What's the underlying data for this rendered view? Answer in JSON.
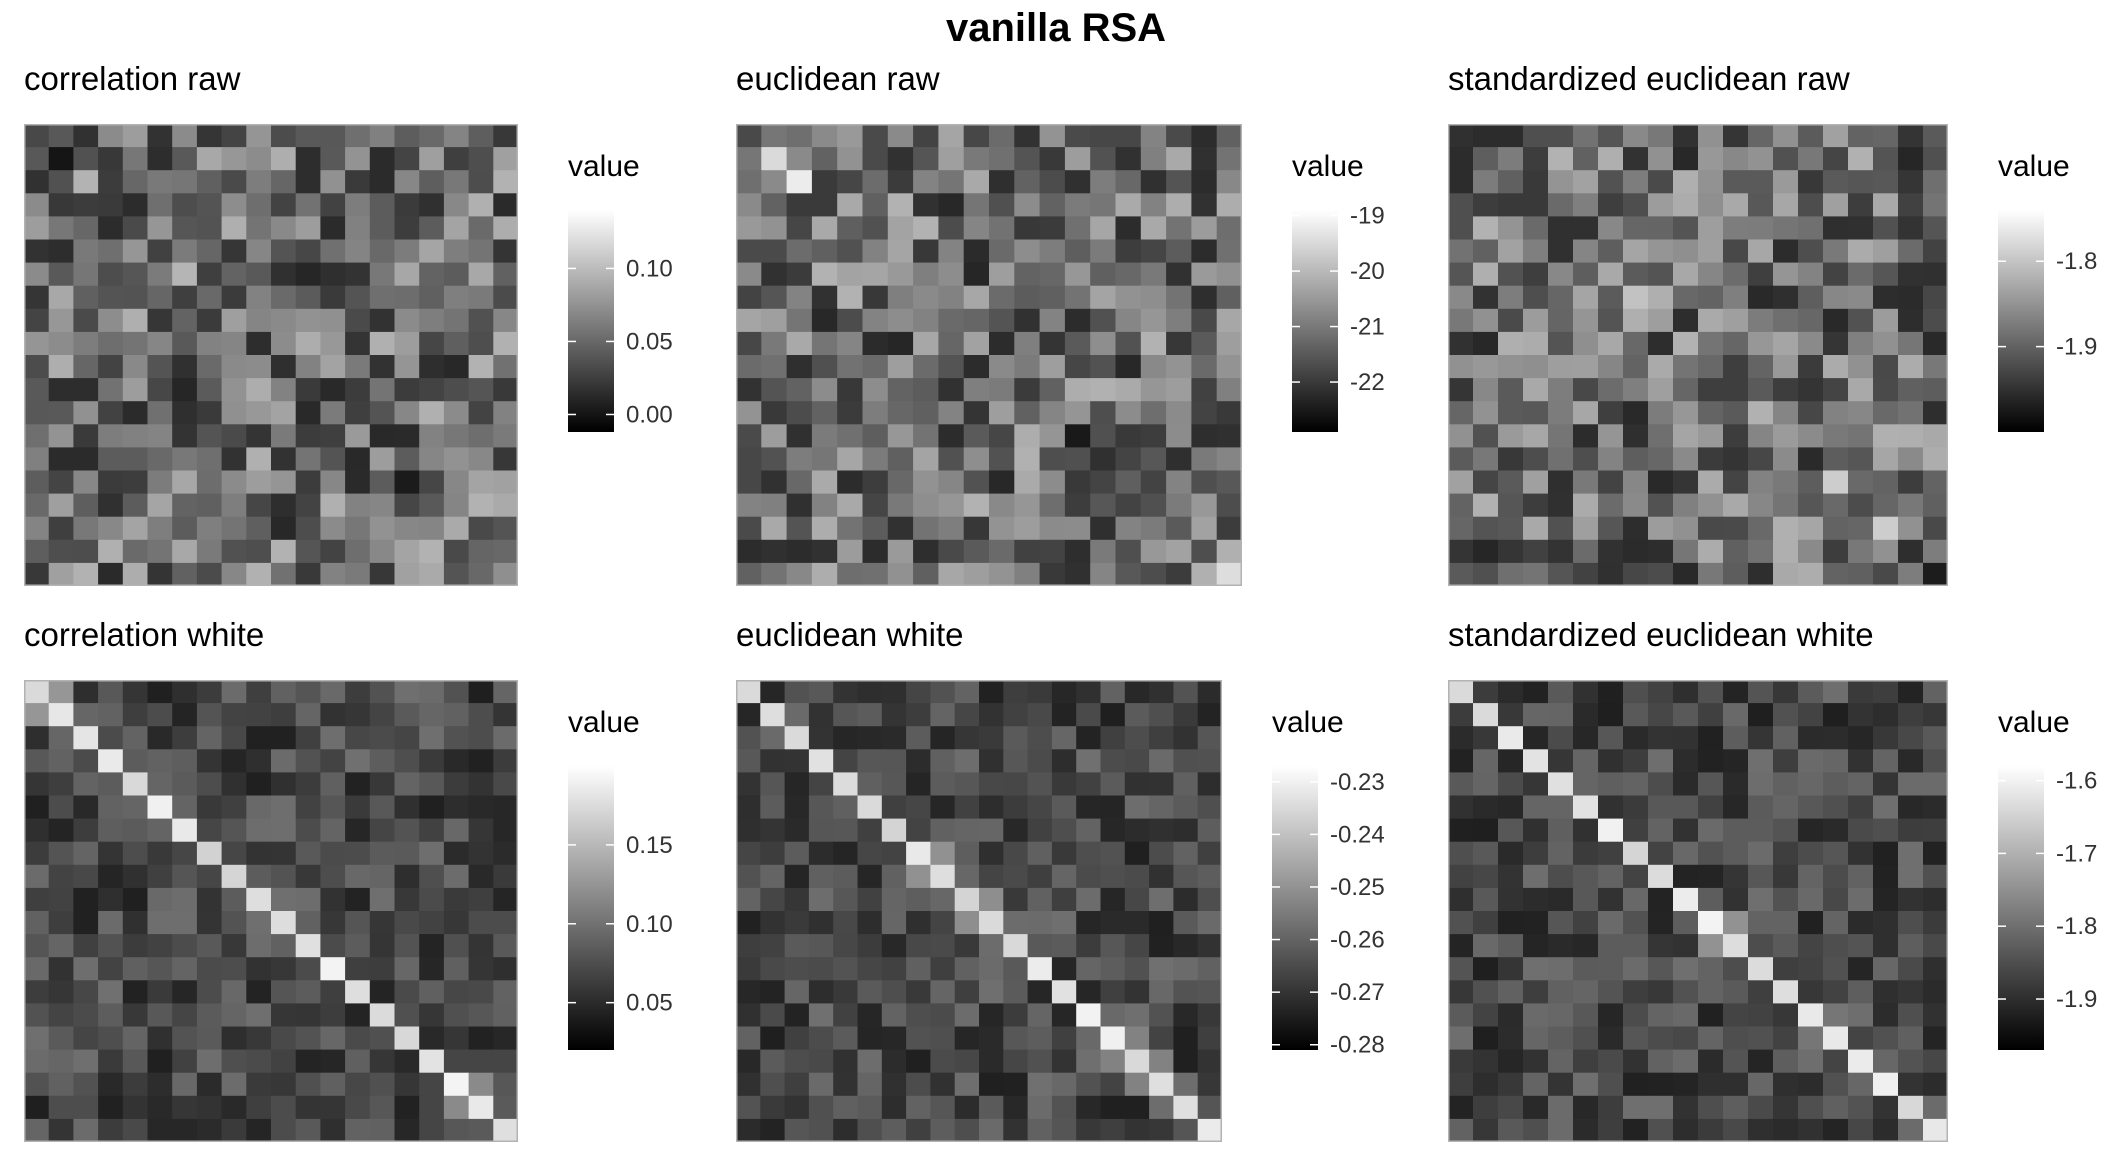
{
  "title": "vanilla RSA",
  "chart_data": [
    {
      "type": "heatmap",
      "title": "correlation raw",
      "matrix": "raw",
      "n": 20,
      "colorscale": [
        "#000000",
        "#ffffff"
      ],
      "value_range": [
        -0.012,
        0.14
      ],
      "legend": {
        "title": "value",
        "ticks": [
          0.1,
          0.05,
          0.0
        ],
        "tick_labels": [
          "0.10",
          "0.05",
          "0.00"
        ]
      },
      "seed": 11
    },
    {
      "type": "heatmap",
      "title": "euclidean raw",
      "matrix": "raw",
      "n": 20,
      "colorscale": [
        "#000000",
        "#ffffff"
      ],
      "value_range": [
        -22.9,
        -18.9
      ],
      "legend": {
        "title": "value",
        "ticks": [
          -19,
          -20,
          -21,
          -22
        ],
        "tick_labels": [
          "-19",
          "-20",
          "-21",
          "-22"
        ]
      },
      "seed": 23
    },
    {
      "type": "heatmap",
      "title": "standardized euclidean raw",
      "matrix": "raw",
      "n": 20,
      "colorscale": [
        "#000000",
        "#ffffff"
      ],
      "value_range": [
        -2.0,
        -1.74
      ],
      "legend": {
        "title": "value",
        "ticks": [
          -1.8,
          -1.9
        ],
        "tick_labels": [
          "-1.8",
          "-1.9"
        ]
      },
      "seed": 37
    },
    {
      "type": "heatmap",
      "title": "correlation white",
      "matrix": "white",
      "n": 20,
      "colorscale": [
        "#000000",
        "#ffffff"
      ],
      "value_range": [
        0.02,
        0.2
      ],
      "legend": {
        "title": "value",
        "ticks": [
          0.15,
          0.1,
          0.05
        ],
        "tick_labels": [
          "0.15",
          "0.10",
          "0.05"
        ]
      },
      "seed": 41
    },
    {
      "type": "heatmap",
      "title": "euclidean white",
      "matrix": "white",
      "n": 20,
      "colorscale": [
        "#000000",
        "#ffffff"
      ],
      "value_range": [
        -0.281,
        -0.227
      ],
      "legend": {
        "title": "value",
        "ticks": [
          -0.23,
          -0.24,
          -0.25,
          -0.26,
          -0.27,
          -0.28
        ],
        "tick_labels": [
          "-0.23",
          "-0.24",
          "-0.25",
          "-0.26",
          "-0.27",
          "-0.28"
        ]
      },
      "seed": 53
    },
    {
      "type": "heatmap",
      "title": "standardized euclidean white",
      "matrix": "white",
      "n": 20,
      "colorscale": [
        "#000000",
        "#ffffff"
      ],
      "value_range": [
        -1.97,
        -1.58
      ],
      "legend": {
        "title": "value",
        "ticks": [
          -1.6,
          -1.7,
          -1.8,
          -1.9
        ],
        "tick_labels": [
          "-1.6",
          "-1.7",
          "-1.8",
          "-1.9"
        ]
      },
      "seed": 67
    }
  ]
}
